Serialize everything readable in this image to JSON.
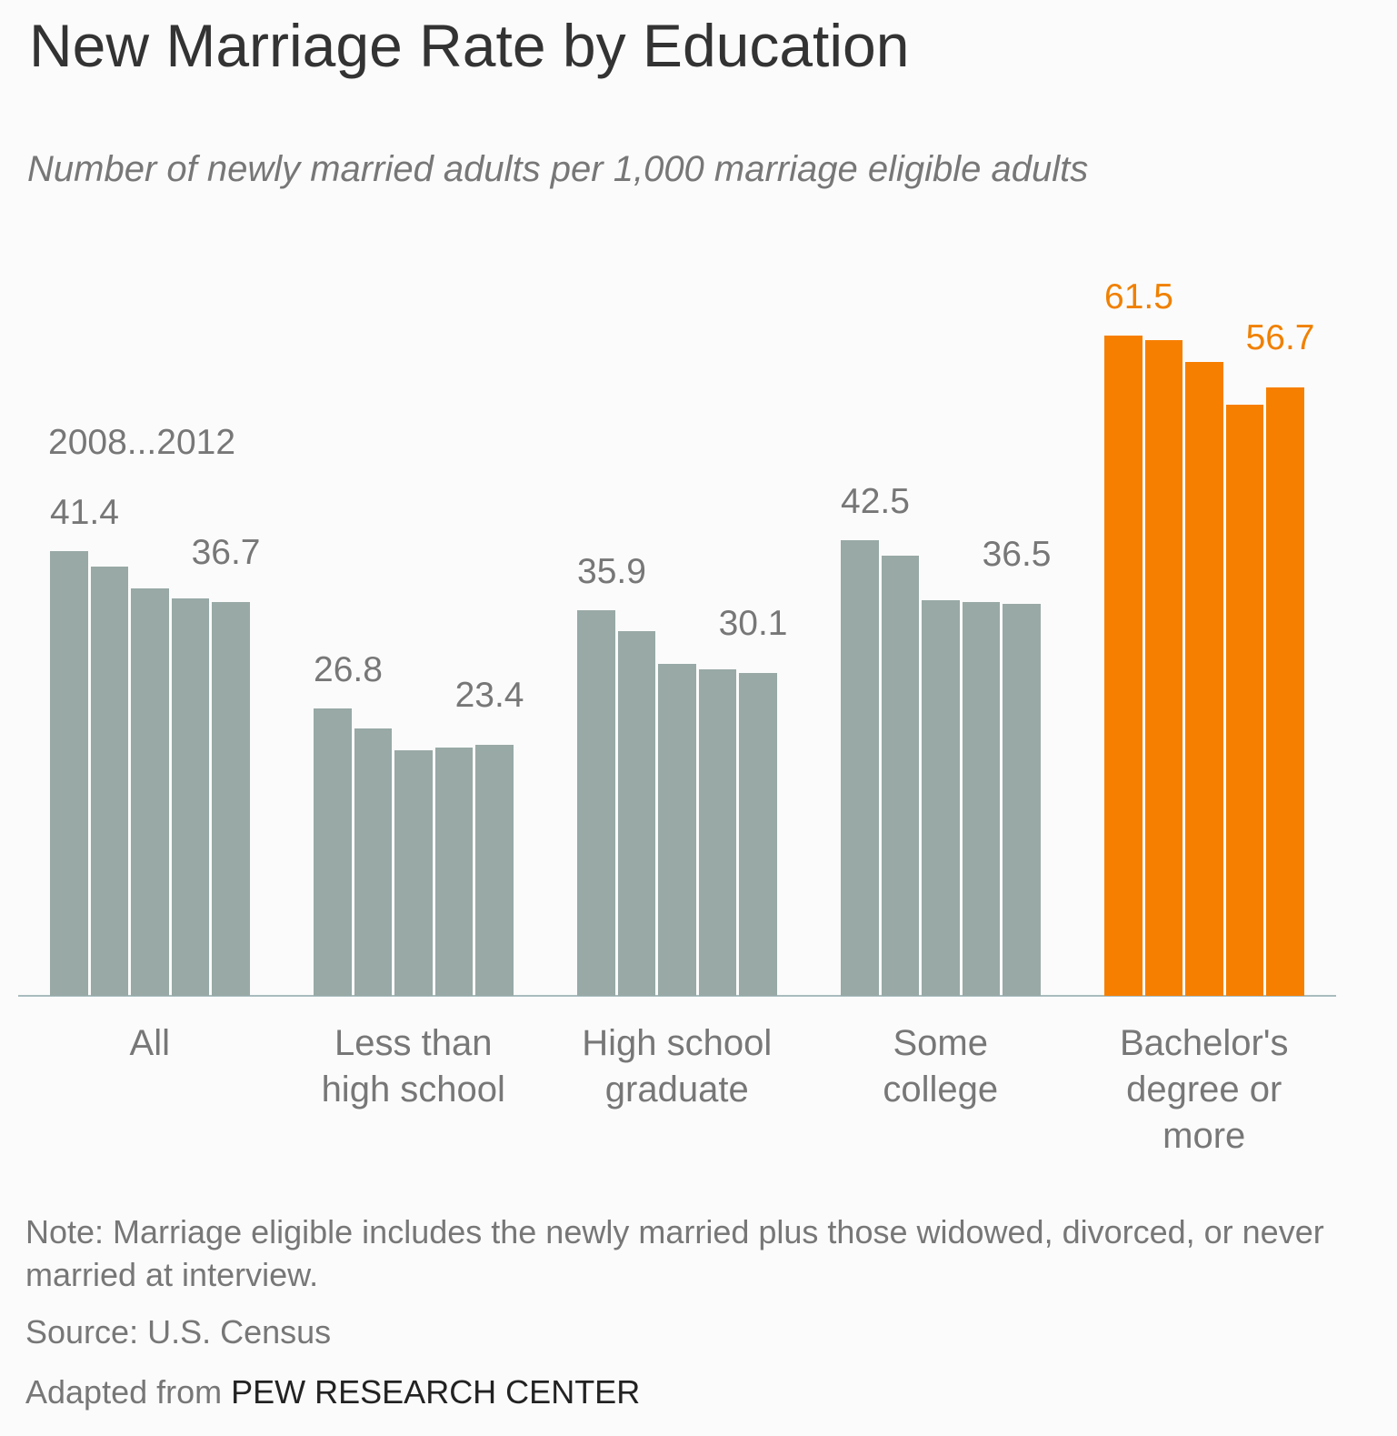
{
  "chart_data": {
    "type": "grouped-bar",
    "title": "New Marriage Rate by Education",
    "subtitle": "Number of newly married adults per 1,000 marriage eligible adults",
    "series_label": "2008...2012",
    "categories": [
      "All",
      "Less than high school",
      "High school graduate",
      "Some college",
      "Bachelor's degree or more"
    ],
    "groups": [
      {
        "values": [
          41.4,
          40.0,
          38.0,
          37.0,
          36.7
        ],
        "color": "#98a9a6",
        "label_color": "#777777"
      },
      {
        "values": [
          26.8,
          24.9,
          22.9,
          23.1,
          23.4
        ],
        "color": "#98a9a6",
        "label_color": "#777777"
      },
      {
        "values": [
          35.9,
          34.0,
          30.9,
          30.4,
          30.1
        ],
        "color": "#98a9a6",
        "label_color": "#777777"
      },
      {
        "values": [
          42.5,
          41.0,
          36.9,
          36.7,
          36.5
        ],
        "color": "#98a9a6",
        "label_color": "#777777"
      },
      {
        "values": [
          61.5,
          61.1,
          59.1,
          55.1,
          56.7
        ],
        "color": "#f77f00",
        "label_color": "#f08000"
      }
    ],
    "ylim": [
      0,
      70
    ],
    "note": "Note: Marriage eligible includes the newly married plus those widowed, divorced, or never married at interview.",
    "source": "Source: U.S. Census",
    "credit_prefix": "Adapted from",
    "credit": "PEW RESEARCH CENTER"
  }
}
